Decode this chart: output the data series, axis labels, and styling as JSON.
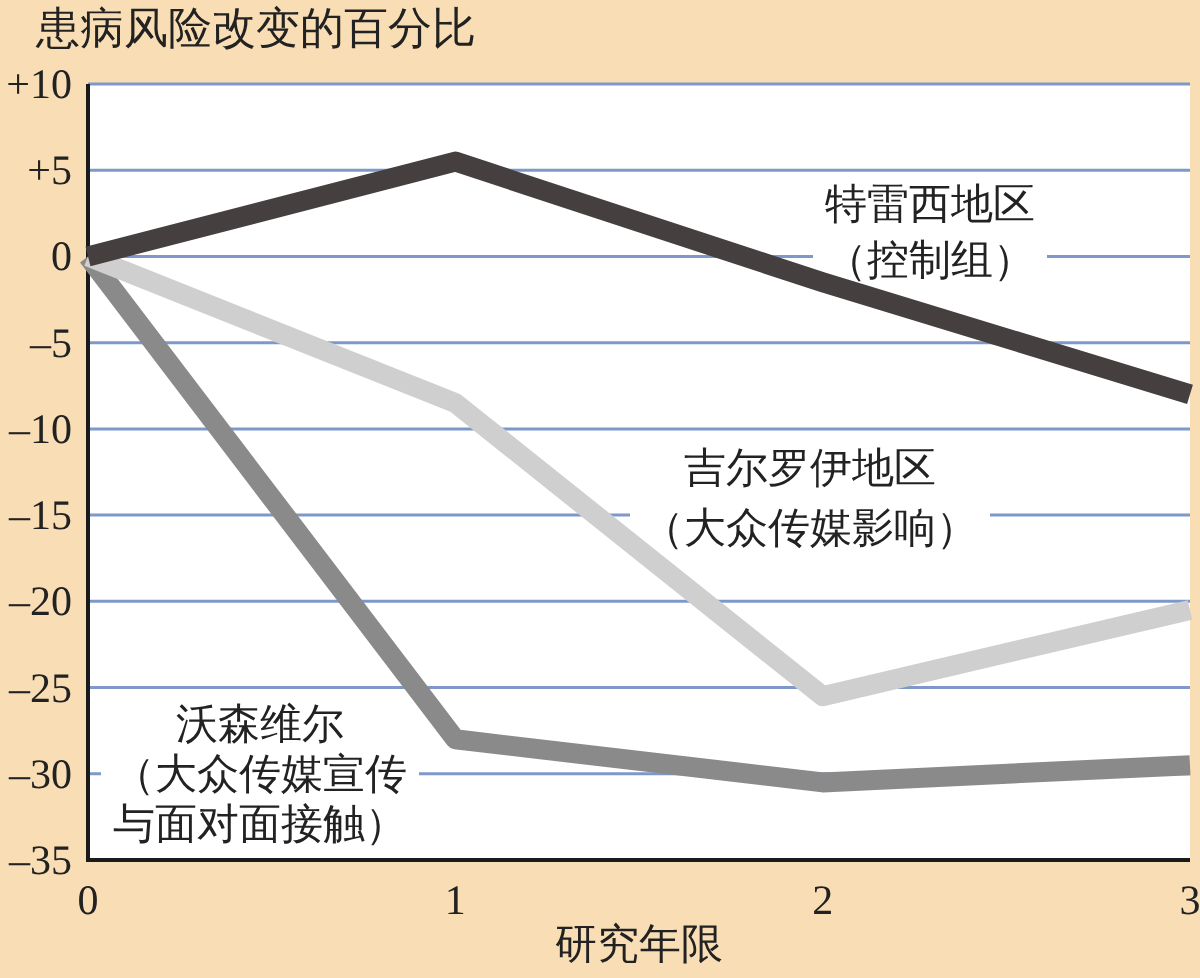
{
  "chart_data": {
    "type": "line",
    "title": "患病风险改变的百分比",
    "xlabel": "研究年限",
    "x": [
      0,
      1,
      2,
      3
    ],
    "series": [
      {
        "name": "特雷西地区（控制组）",
        "color": "#45403f",
        "values": [
          0,
          5.5,
          -1.5,
          -8
        ]
      },
      {
        "name": "吉尔罗伊地区（大众传媒影响）",
        "color": "#cfcfcf",
        "values": [
          0,
          -8.5,
          -25.5,
          -20.5
        ]
      },
      {
        "name": "沃森维尔（大众传媒宣传与面对面接触）",
        "color": "#8a8a8a",
        "values": [
          0,
          -28,
          -30.5,
          -29.5
        ]
      }
    ],
    "xlim": [
      0,
      3
    ],
    "ylim": [
      -35,
      10
    ],
    "xticks": [
      0,
      1,
      2,
      3
    ],
    "yticks": [
      {
        "value": 10,
        "label": "+10"
      },
      {
        "value": 5,
        "label": "+5"
      },
      0,
      {
        "value": -5,
        "label": "–5"
      },
      {
        "value": -10,
        "label": "–10"
      },
      {
        "value": -15,
        "label": "–15"
      },
      {
        "value": -20,
        "label": "–20"
      },
      {
        "value": -25,
        "label": "–25"
      },
      {
        "value": -30,
        "label": "–30"
      },
      {
        "value": -35,
        "label": "–35"
      }
    ],
    "grid": "y"
  }
}
